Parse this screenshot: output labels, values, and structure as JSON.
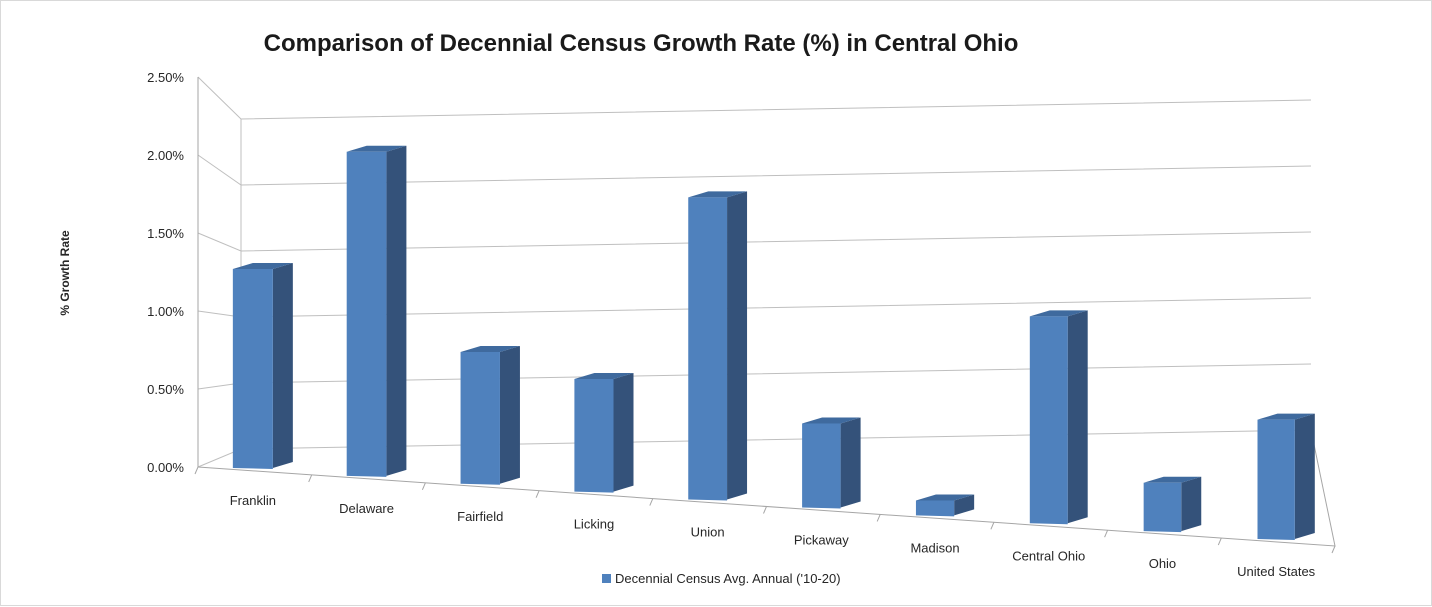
{
  "chart_data": {
    "type": "bar",
    "title": "Comparison of Decennial Census Growth Rate (%) in Central Ohio",
    "ylabel": "% Growth Rate",
    "xlabel": "",
    "categories": [
      "Franklin",
      "Delaware",
      "Fairfield",
      "Licking",
      "Union",
      "Pickaway",
      "Madison",
      "Central Ohio",
      "Ohio",
      "United States"
    ],
    "series": [
      {
        "name": "Decennial Census Avg. Annual ('10-20)",
        "values": [
          1.28,
          2.1,
          0.86,
          0.74,
          2.0,
          0.56,
          0.1,
          1.4,
          0.33,
          0.82
        ],
        "color": "#4f81bd"
      }
    ],
    "y_ticks": [
      "0.00%",
      "0.50%",
      "1.00%",
      "1.50%",
      "2.00%",
      "2.50%"
    ],
    "ylim": [
      0,
      2.5
    ],
    "grid": true,
    "legend": "bottom",
    "projection": "3d-perspective"
  }
}
